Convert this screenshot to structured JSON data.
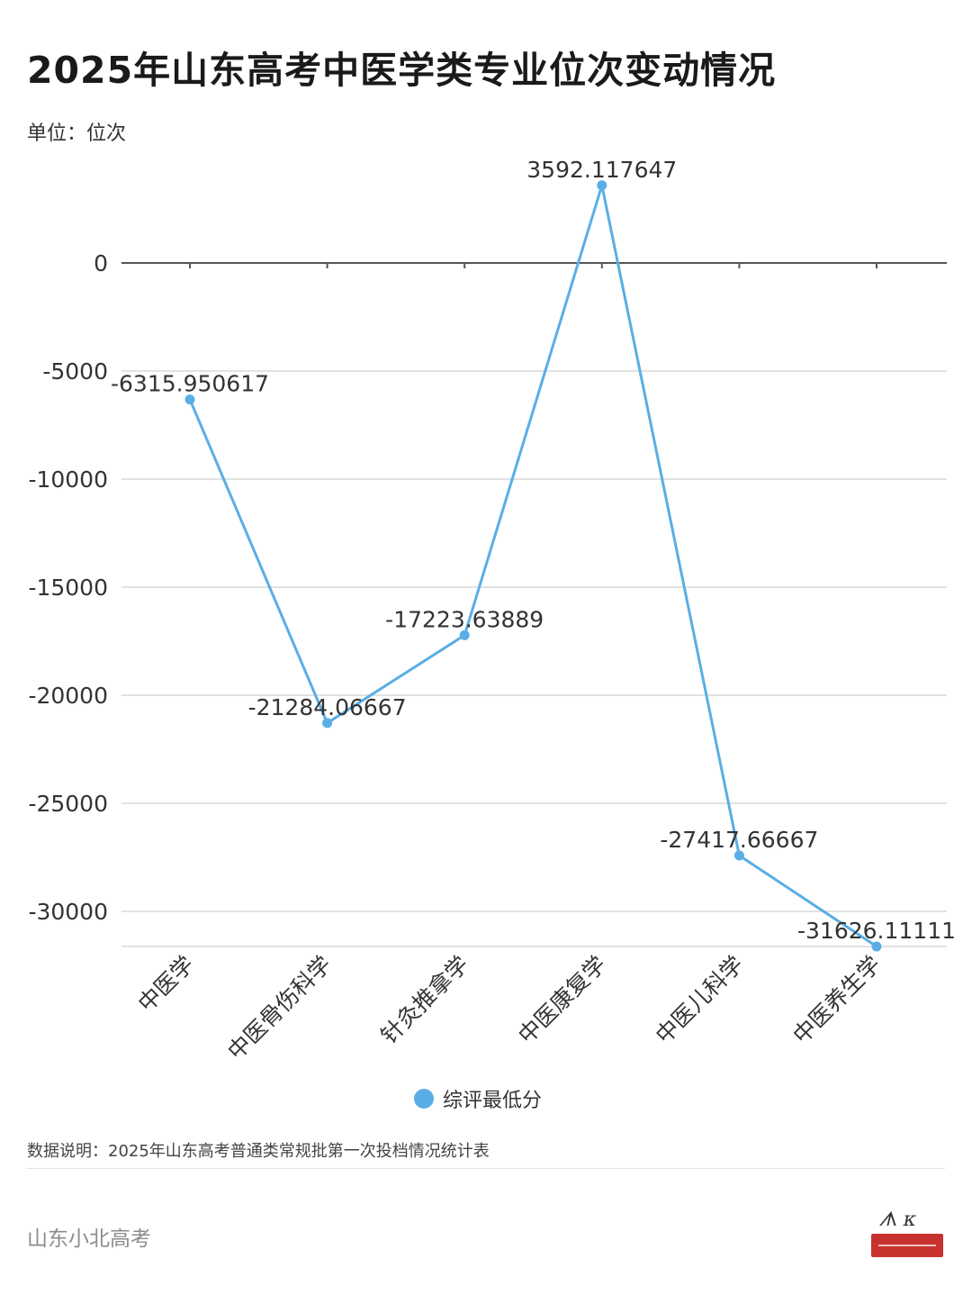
{
  "title": "2025年山东高考中医学类专业位次变动情况",
  "unit_label": "单位：位次",
  "note": "数据说明：2025年山东高考普通类常规批第一次投档情况统计表",
  "brand": "山东小北高考",
  "logo_icon": "shandong-xiaobei-gaokao-logo-icon",
  "colors": {
    "series": "#5aaee5",
    "grid": "#d9d9d9",
    "axis": "#555555"
  },
  "chart_data": {
    "type": "line",
    "title": "2025年山东高考中医学类专业位次变动情况",
    "ylabel": "单位：位次",
    "xlabel": "",
    "categories": [
      "中医学",
      "中医骨伤科学",
      "针灸推拿学",
      "中医康复学",
      "中医儿科学",
      "中医养生学"
    ],
    "series": [
      {
        "name": "综评最低分",
        "values": [
          -6315.950617,
          -21284.06667,
          -17223.63889,
          3592.117647,
          -27417.66667,
          -31626.11111
        ],
        "labels": [
          "-6315.950617",
          "-21284.06667",
          "-17223.63889",
          "3592.117647",
          "-27417.66667",
          "-31626.11111"
        ]
      }
    ],
    "yticks": [
      0,
      -5000,
      -10000,
      -15000,
      -20000,
      -25000,
      -30000
    ],
    "ylim": [
      -31626.11111,
      3592.117647
    ],
    "grid": true,
    "legend_position": "bottom-center",
    "x_label_rotation": "rotated-45"
  }
}
